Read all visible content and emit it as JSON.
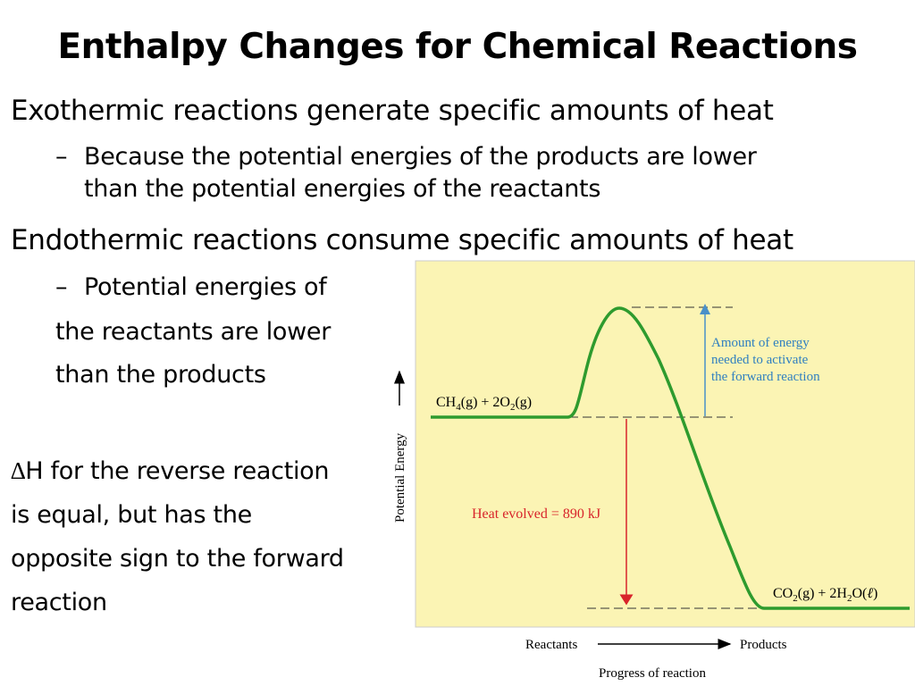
{
  "slide": {
    "title": "Enthalpy Changes for Chemical Reactions",
    "bullets": {
      "exothermic": "Exothermic reactions generate specific amounts of heat",
      "exothermic_sub_line1": "Because the potential energies of the products are lower",
      "exothermic_sub_line2": "than the potential energies of the reactants",
      "endothermic": "Endothermic reactions consume specific amounts of heat",
      "endothermic_sub_line1": "Potential energies of",
      "endothermic_sub_line2": "the reactants are lower",
      "endothermic_sub_line3": "than the products",
      "dash_symbol": "–"
    },
    "delta_h_note": {
      "symbol": "∆",
      "line1": "H for the reverse reaction",
      "line2": "is equal, but has the",
      "line3": "opposite sign to the forward",
      "line4": "reaction"
    }
  },
  "diagram": {
    "y_axis_label": "Potential Energy",
    "x_axis_label": "Progress of reaction",
    "x_start_label": "Reactants",
    "x_end_label": "Products",
    "reactants": {
      "formula_main": "CH",
      "sub1": "4",
      "mid": "(g) + 2O",
      "sub2": "2",
      "tail": "(g)"
    },
    "products": {
      "formula_main": "CO",
      "sub1": "2",
      "mid": "(g) + 2H",
      "sub2": "2",
      "tail": "O(",
      "script_l": "ℓ",
      "close": ")"
    },
    "activation_label": [
      "Amount of energy",
      "needed to activate",
      "the forward reaction"
    ],
    "heat_label": "Heat evolved = 890 kJ",
    "colors": {
      "background": "#FBF4B4",
      "curve": "#2E9B2E",
      "activation_arrow": "#4A90C8",
      "activation_text": "#2F7FC0",
      "heat_arrow": "#D8242B",
      "heat_text": "#D8242B",
      "dashes": "#333333"
    }
  }
}
